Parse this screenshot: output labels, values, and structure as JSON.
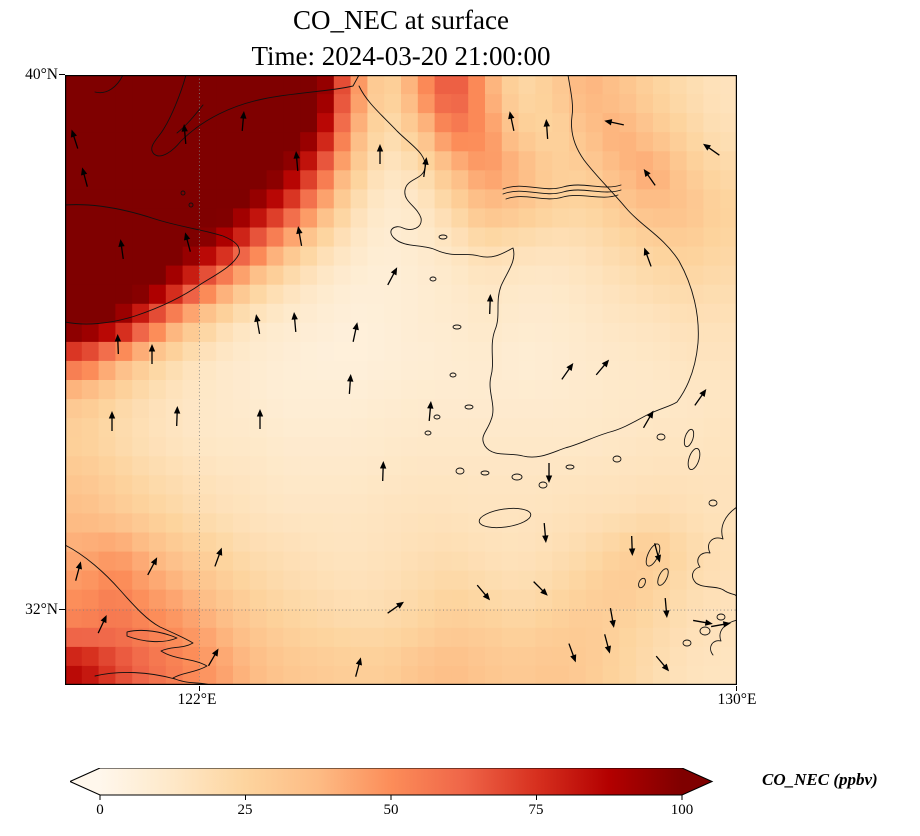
{
  "title": {
    "line1": "CO_NEC at surface",
    "line2": "Time: 2024-03-20 21:00:00"
  },
  "axes": {
    "lat_top": "40°N",
    "lat_bottom": "32°N",
    "lon_left": "122°E",
    "lon_right": "130°E"
  },
  "colorbar": {
    "label": "CO_NEC (ppbv)",
    "ticks": [
      "0",
      "25",
      "50",
      "75",
      "100"
    ]
  },
  "chart_data": {
    "type": "heatmap",
    "title": "CO_NEC at surface",
    "subtitle": "Time: 2024-03-20 21:00:00",
    "variable": "CO_NEC",
    "level": "surface",
    "units": "ppbv",
    "lon_range": [
      120.0,
      130.0
    ],
    "lat_range": [
      30.88,
      40.0
    ],
    "axis_ticks": {
      "lon": [
        122,
        130
      ],
      "lat": [
        40,
        32
      ]
    },
    "gridlines": {
      "lon": [
        122
      ],
      "lat": [
        32
      ]
    },
    "colorbar_ticks": [
      0,
      25,
      50,
      75,
      100
    ],
    "colorbar_extend": "both",
    "colormap": "OrRd",
    "colormap_stops": [
      {
        "t": 0.0,
        "c": "#fff7ec"
      },
      {
        "t": 0.125,
        "c": "#fee8c8"
      },
      {
        "t": 0.25,
        "c": "#fdd49e"
      },
      {
        "t": 0.375,
        "c": "#fdbb84"
      },
      {
        "t": 0.5,
        "c": "#fc8d59"
      },
      {
        "t": 0.625,
        "c": "#ef6548"
      },
      {
        "t": 0.75,
        "c": "#d7301f"
      },
      {
        "t": 0.875,
        "c": "#b30000"
      },
      {
        "t": 1.0,
        "c": "#7f0000"
      }
    ],
    "grid": {
      "ncols": 20,
      "nrows": 16,
      "description": "CO_NEC ppbv field, rows top(40N)->bottom(31N), cols left(120E)->right(130E); values >100 saturate colorbar",
      "values": [
        [
          112,
          112,
          112,
          112,
          112,
          112,
          112,
          108,
          55,
          22,
          45,
          70,
          45,
          22,
          28,
          40,
          34,
          26,
          20,
          16
        ],
        [
          112,
          112,
          112,
          112,
          112,
          112,
          112,
          95,
          45,
          18,
          30,
          55,
          50,
          30,
          24,
          34,
          42,
          32,
          24,
          18
        ],
        [
          112,
          112,
          112,
          112,
          112,
          110,
          100,
          70,
          32,
          14,
          18,
          35,
          48,
          40,
          28,
          28,
          38,
          44,
          30,
          22
        ],
        [
          112,
          112,
          112,
          112,
          108,
          95,
          75,
          45,
          20,
          10,
          12,
          22,
          36,
          32,
          26,
          24,
          30,
          36,
          34,
          26
        ],
        [
          112,
          112,
          112,
          105,
          90,
          65,
          40,
          22,
          13,
          8,
          10,
          14,
          20,
          18,
          16,
          18,
          22,
          26,
          28,
          24
        ],
        [
          112,
          112,
          105,
          80,
          52,
          30,
          18,
          12,
          8,
          7,
          9,
          11,
          14,
          12,
          12,
          14,
          17,
          20,
          22,
          20
        ],
        [
          108,
          95,
          65,
          38,
          22,
          13,
          10,
          8,
          6,
          7,
          9,
          10,
          12,
          10,
          10,
          12,
          14,
          15,
          17,
          17
        ],
        [
          62,
          42,
          27,
          18,
          12,
          10,
          8,
          6,
          6,
          7,
          8,
          9,
          10,
          8,
          9,
          11,
          12,
          13,
          15,
          15
        ],
        [
          32,
          24,
          18,
          14,
          12,
          10,
          8,
          8,
          8,
          9,
          10,
          10,
          10,
          10,
          10,
          11,
          12,
          12,
          13,
          14
        ],
        [
          26,
          21,
          17,
          14,
          12,
          12,
          10,
          10,
          10,
          11,
          12,
          12,
          12,
          12,
          12,
          12,
          13,
          14,
          14,
          15
        ],
        [
          31,
          26,
          21,
          18,
          15,
          14,
          12,
          12,
          12,
          13,
          14,
          14,
          14,
          14,
          14,
          15,
          15,
          16,
          16,
          16
        ],
        [
          36,
          31,
          26,
          22,
          18,
          16,
          14,
          14,
          14,
          15,
          16,
          16,
          15,
          15,
          16,
          17,
          18,
          20,
          18,
          16
        ],
        [
          42,
          46,
          38,
          30,
          25,
          20,
          18,
          16,
          15,
          16,
          18,
          19,
          17,
          16,
          18,
          21,
          26,
          30,
          22,
          18
        ],
        [
          48,
          54,
          46,
          40,
          31,
          25,
          21,
          19,
          17,
          18,
          21,
          24,
          21,
          19,
          22,
          26,
          30,
          26,
          20,
          17
        ],
        [
          55,
          58,
          53,
          48,
          40,
          32,
          27,
          24,
          22,
          22,
          25,
          29,
          28,
          25,
          28,
          30,
          26,
          22,
          18,
          16
        ],
        [
          85,
          70,
          60,
          53,
          46,
          38,
          32,
          30,
          28,
          28,
          33,
          36,
          32,
          30,
          32,
          30,
          25,
          20,
          16,
          15
        ]
      ]
    },
    "wind_arrows": {
      "description": "quiver arrows, [x_px, y_px, direction_deg (0=N, clockwise)] in 672x610 map frame",
      "items": [
        [
          10,
          65,
          -18
        ],
        [
          20,
          103,
          -15
        ],
        [
          57,
          175,
          -8
        ],
        [
          120,
          60,
          -5
        ],
        [
          178,
          47,
          5
        ],
        [
          232,
          87,
          -5
        ],
        [
          235,
          162,
          -10
        ],
        [
          123,
          168,
          -15
        ],
        [
          193,
          250,
          -10
        ],
        [
          53,
          270,
          -2
        ],
        [
          315,
          80,
          0
        ],
        [
          360,
          93,
          8
        ],
        [
          447,
          47,
          -12
        ],
        [
          482,
          55,
          -4
        ],
        [
          550,
          48,
          -78
        ],
        [
          585,
          103,
          -35
        ],
        [
          647,
          75,
          -55
        ],
        [
          583,
          183,
          -20
        ],
        [
          327,
          202,
          28
        ],
        [
          290,
          258,
          12
        ],
        [
          285,
          310,
          4
        ],
        [
          425,
          230,
          2
        ],
        [
          502,
          297,
          35
        ],
        [
          537,
          293,
          40
        ],
        [
          583,
          345,
          30
        ],
        [
          635,
          323,
          35
        ],
        [
          87,
          280,
          0
        ],
        [
          47,
          347,
          0
        ],
        [
          112,
          342,
          2
        ],
        [
          195,
          345,
          0
        ],
        [
          230,
          248,
          -5
        ],
        [
          365,
          337,
          5
        ],
        [
          318,
          397,
          2
        ],
        [
          13,
          497,
          15
        ],
        [
          87,
          492,
          28
        ],
        [
          153,
          483,
          20
        ],
        [
          37,
          550,
          25
        ],
        [
          148,
          583,
          30
        ],
        [
          293,
          593,
          15
        ],
        [
          330,
          533,
          55
        ],
        [
          418,
          517,
          140
        ],
        [
          475,
          513,
          135
        ],
        [
          480,
          457,
          175
        ],
        [
          484,
          397,
          180
        ],
        [
          567,
          470,
          178
        ],
        [
          592,
          477,
          165
        ],
        [
          601,
          532,
          175
        ],
        [
          507,
          577,
          160
        ],
        [
          542,
          568,
          165
        ],
        [
          547,
          542,
          170
        ],
        [
          637,
          547,
          100
        ],
        [
          655,
          550,
          80
        ],
        [
          597,
          588,
          140
        ]
      ]
    },
    "overlays": "coastlines of Bohai/Yellow Sea, Shandong, Korean peninsula, Jeju, Tsushima, Kyushu, Jiangsu coast; dotted graticule at 122E and 32N"
  }
}
